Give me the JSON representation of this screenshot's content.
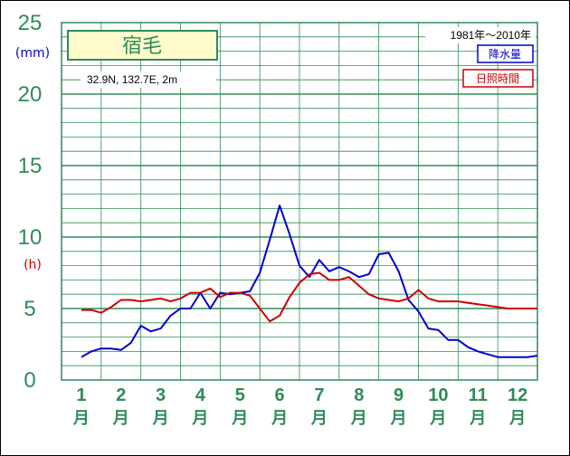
{
  "chart_data": {
    "type": "line",
    "title": "宿毛",
    "coords_label": "32.9N,  132.7E,  2m",
    "period_label": "1981年〜2010年",
    "ylabel_left": "(mm)",
    "ylabel_left2": "(h)",
    "ylim": [
      0,
      25
    ],
    "yticks": [
      "0",
      "5",
      "10",
      "15",
      "20",
      "25"
    ],
    "months": [
      "1",
      "2",
      "3",
      "4",
      "5",
      "6",
      "7",
      "8",
      "9",
      "10",
      "11",
      "12"
    ],
    "month_suffix": "月",
    "x": [
      1,
      1.25,
      1.5,
      1.75,
      2,
      2.25,
      2.5,
      2.75,
      3,
      3.25,
      3.5,
      3.75,
      4,
      4.25,
      4.5,
      4.75,
      5,
      5.25,
      5.5,
      5.75,
      6,
      6.25,
      6.5,
      6.75,
      7,
      7.25,
      7.5,
      7.75,
      8,
      8.25,
      8.5,
      8.75,
      9,
      9.25,
      9.5,
      9.75,
      10,
      10.25,
      10.5,
      10.75,
      11,
      11.25,
      11.5,
      11.75,
      12,
      12.25,
      12.5
    ],
    "series": [
      {
        "name": "降水量",
        "color": "#0000cc",
        "values": [
          1.6,
          2.0,
          2.2,
          2.2,
          2.1,
          2.6,
          3.8,
          3.4,
          3.6,
          4.5,
          5.0,
          5.0,
          6.1,
          5.0,
          6.1,
          6.0,
          6.1,
          6.2,
          7.5,
          9.8,
          12.2,
          10.2,
          8.0,
          7.2,
          8.4,
          7.6,
          7.9,
          7.6,
          7.2,
          7.4,
          8.8,
          8.9,
          7.6,
          5.6,
          4.8,
          3.6,
          3.5,
          2.8,
          2.8,
          2.3,
          2.0,
          1.8,
          1.6,
          1.6,
          1.6,
          1.6,
          1.7
        ]
      },
      {
        "name": "日照時間",
        "color": "#cc0000",
        "values": [
          4.9,
          4.9,
          4.7,
          5.1,
          5.6,
          5.6,
          5.5,
          5.6,
          5.7,
          5.5,
          5.7,
          6.1,
          6.1,
          6.4,
          5.8,
          6.1,
          6.1,
          5.9,
          5.0,
          4.1,
          4.5,
          5.8,
          6.8,
          7.4,
          7.5,
          7.0,
          7.0,
          7.2,
          6.6,
          6.0,
          5.7,
          5.6,
          5.5,
          5.7,
          6.3,
          5.7,
          5.5,
          5.5,
          5.5,
          5.4,
          5.3,
          5.2,
          5.1,
          5.0,
          5.0,
          5.0,
          5.0
        ]
      }
    ]
  }
}
